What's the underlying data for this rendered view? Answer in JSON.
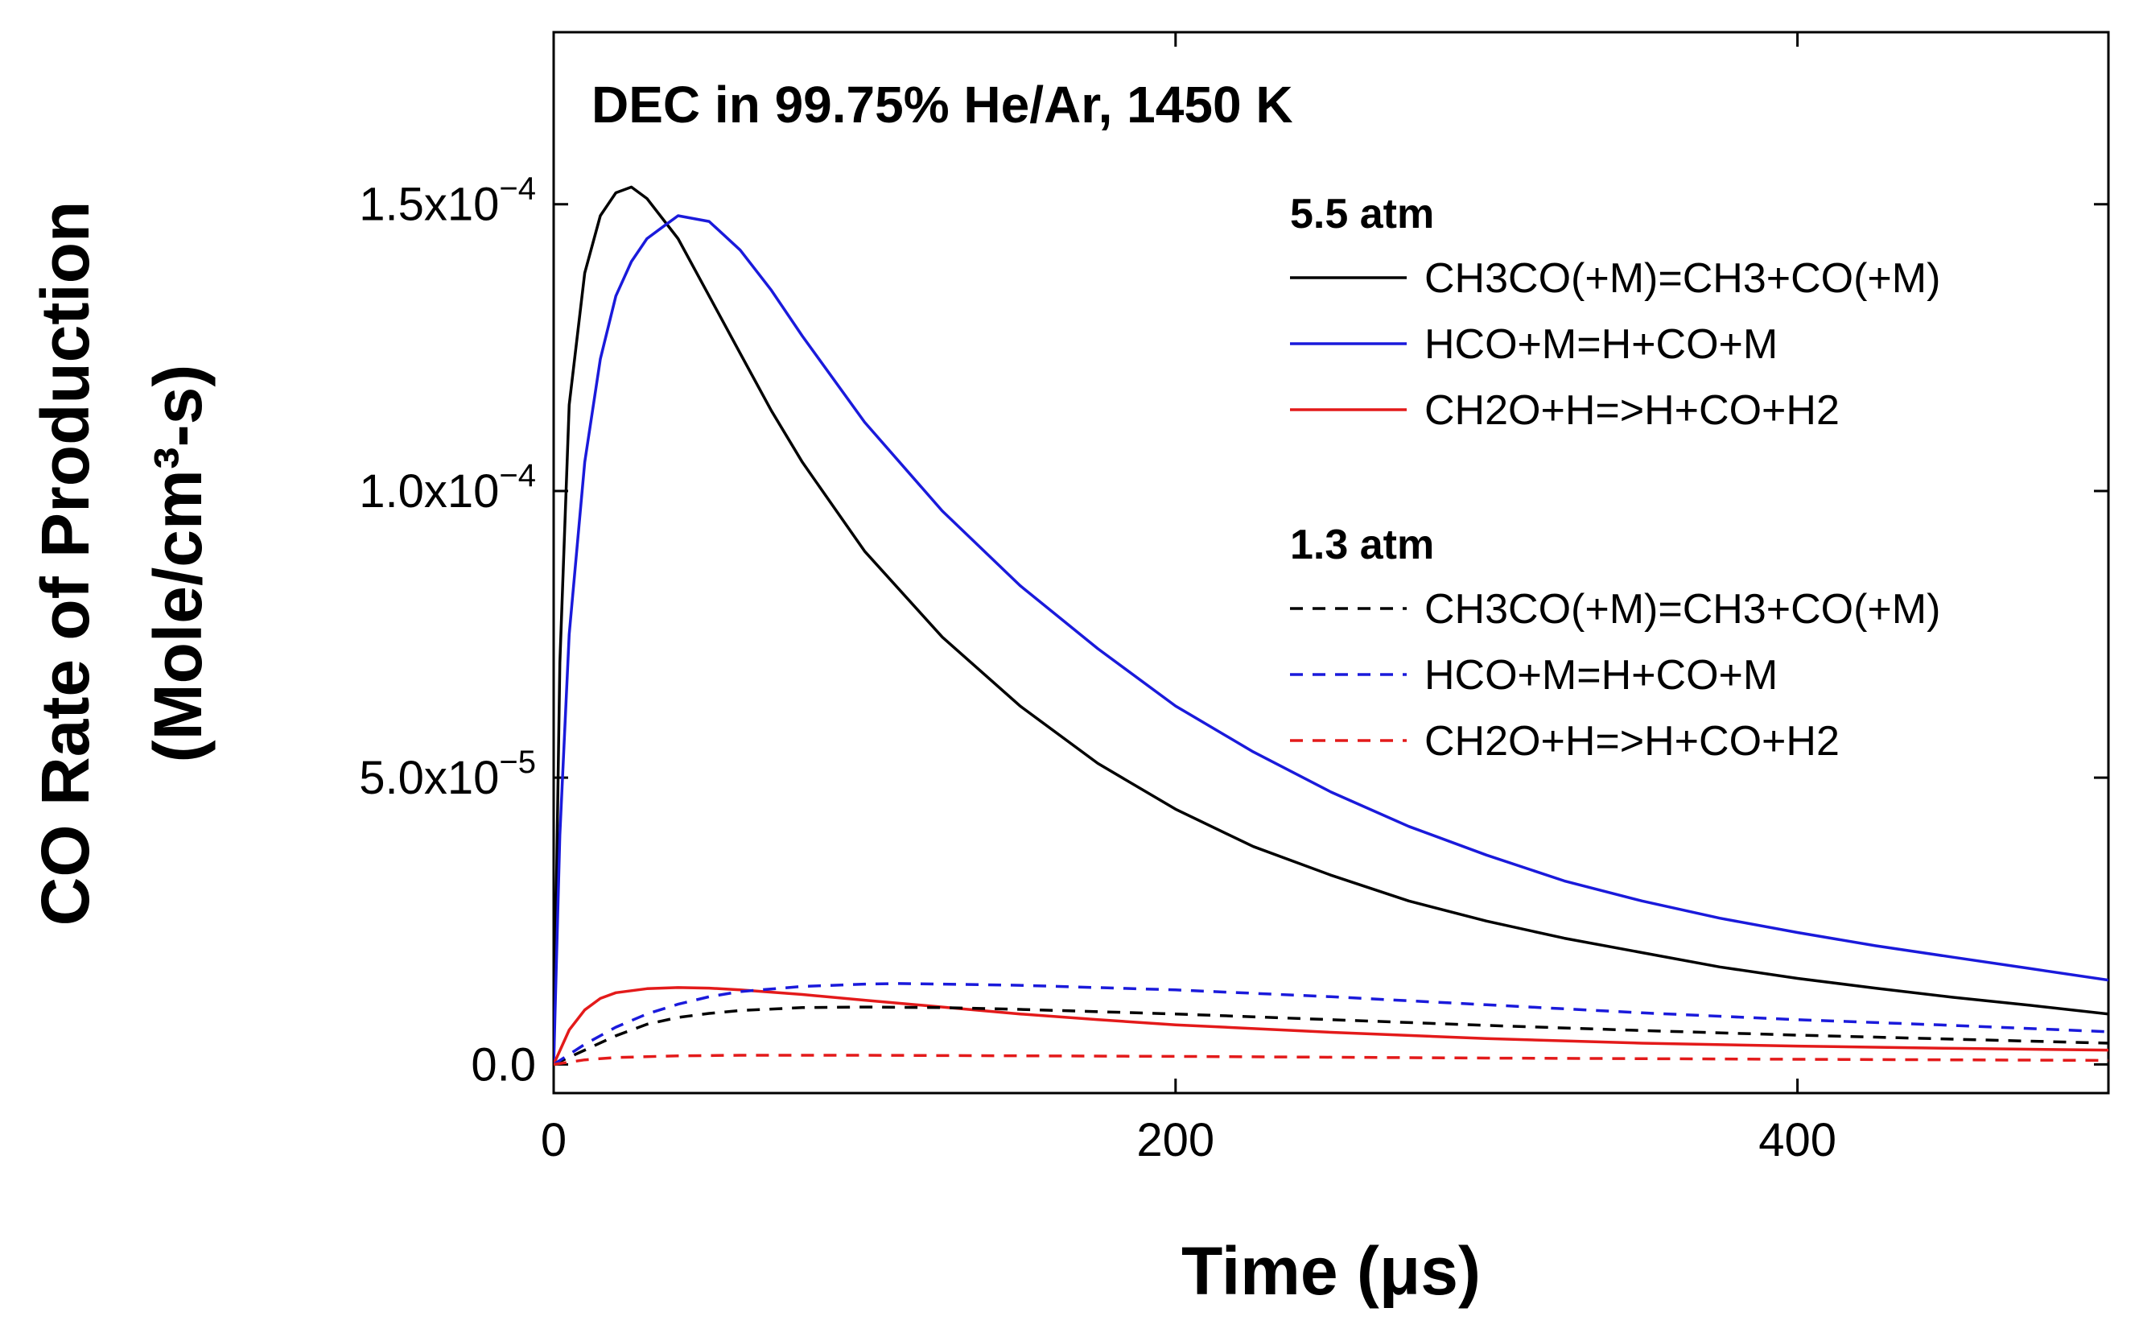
{
  "chart_data": {
    "type": "line",
    "title": "DEC in 99.75% He/Ar, 1450 K",
    "xlabel": "Time (μs)",
    "ylabel_line1": "CO Rate of Production",
    "ylabel_line2": "(Mole/cm³-s)",
    "xlim": [
      0,
      500
    ],
    "ylim": [
      -5e-06,
      0.00018
    ],
    "x_ticks": [
      0,
      200,
      400
    ],
    "x_tick_labels": [
      "0",
      "200",
      "400"
    ],
    "y_ticks": [
      0,
      5e-05,
      0.0001,
      0.00015
    ],
    "y_tick_labels": [
      {
        "mantissa": "0.0",
        "exponent": ""
      },
      {
        "mantissa": "5.0x10",
        "exponent": "−5"
      },
      {
        "mantissa": "1.0x10",
        "exponent": "−4"
      },
      {
        "mantissa": "1.5x10",
        "exponent": "−4"
      }
    ],
    "legend_groups": [
      {
        "header": "5.5 atm",
        "style": "solid"
      },
      {
        "header": "1.3 atm",
        "style": "dashed"
      }
    ],
    "legend_position": "top-right",
    "series": [
      {
        "name": "CH3CO(+M)=CH3+CO(+M)",
        "group": "5.5 atm",
        "color": "#000000",
        "dash": "solid",
        "points": [
          [
            0,
            0
          ],
          [
            2,
            7e-05
          ],
          [
            5,
            0.000115
          ],
          [
            10,
            0.000138
          ],
          [
            15,
            0.000148
          ],
          [
            20,
            0.000152
          ],
          [
            25,
            0.000153
          ],
          [
            30,
            0.000151
          ],
          [
            40,
            0.000144
          ],
          [
            50,
            0.000134
          ],
          [
            60,
            0.000124
          ],
          [
            70,
            0.000114
          ],
          [
            80,
            0.000105
          ],
          [
            100,
            8.95e-05
          ],
          [
            125,
            7.45e-05
          ],
          [
            150,
            6.25e-05
          ],
          [
            175,
            5.25e-05
          ],
          [
            200,
            4.45e-05
          ],
          [
            225,
            3.8e-05
          ],
          [
            250,
            3.3e-05
          ],
          [
            275,
            2.85e-05
          ],
          [
            300,
            2.5e-05
          ],
          [
            325,
            2.2e-05
          ],
          [
            350,
            1.95e-05
          ],
          [
            375,
            1.7e-05
          ],
          [
            400,
            1.5e-05
          ],
          [
            425,
            1.33e-05
          ],
          [
            450,
            1.17e-05
          ],
          [
            475,
            1.03e-05
          ],
          [
            500,
            8.8e-06
          ]
        ]
      },
      {
        "name": "HCO+M=H+CO+M",
        "group": "5.5 atm",
        "color": "#1a1adb",
        "dash": "solid",
        "points": [
          [
            0,
            0
          ],
          [
            2,
            4e-05
          ],
          [
            5,
            7.5e-05
          ],
          [
            10,
            0.000105
          ],
          [
            15,
            0.000123
          ],
          [
            20,
            0.000134
          ],
          [
            25,
            0.00014
          ],
          [
            30,
            0.000144
          ],
          [
            35,
            0.000146
          ],
          [
            40,
            0.000148
          ],
          [
            50,
            0.000147
          ],
          [
            60,
            0.000142
          ],
          [
            70,
            0.000135
          ],
          [
            80,
            0.000127
          ],
          [
            100,
            0.000112
          ],
          [
            125,
            9.65e-05
          ],
          [
            150,
            8.35e-05
          ],
          [
            175,
            7.25e-05
          ],
          [
            200,
            6.25e-05
          ],
          [
            225,
            5.45e-05
          ],
          [
            250,
            4.75e-05
          ],
          [
            275,
            4.15e-05
          ],
          [
            300,
            3.65e-05
          ],
          [
            325,
            3.2e-05
          ],
          [
            350,
            2.85e-05
          ],
          [
            375,
            2.55e-05
          ],
          [
            400,
            2.3e-05
          ],
          [
            425,
            2.07e-05
          ],
          [
            450,
            1.87e-05
          ],
          [
            475,
            1.67e-05
          ],
          [
            500,
            1.47e-05
          ]
        ]
      },
      {
        "name": "CH2O+H=>H+CO+H2",
        "group": "5.5 atm",
        "color": "#e31a1a",
        "dash": "solid",
        "points": [
          [
            0,
            0
          ],
          [
            5,
            6e-06
          ],
          [
            10,
            9.5e-06
          ],
          [
            15,
            1.15e-05
          ],
          [
            20,
            1.25e-05
          ],
          [
            30,
            1.32e-05
          ],
          [
            40,
            1.34e-05
          ],
          [
            50,
            1.33e-05
          ],
          [
            60,
            1.3e-05
          ],
          [
            80,
            1.22e-05
          ],
          [
            100,
            1.12e-05
          ],
          [
            125,
            1e-05
          ],
          [
            150,
            8.8e-06
          ],
          [
            175,
            7.8e-06
          ],
          [
            200,
            6.9e-06
          ],
          [
            250,
            5.6e-06
          ],
          [
            300,
            4.5e-06
          ],
          [
            350,
            3.7e-06
          ],
          [
            400,
            3.2e-06
          ],
          [
            450,
            2.8e-06
          ],
          [
            500,
            2.5e-06
          ]
        ]
      },
      {
        "name": "CH3CO(+M)=CH3+CO(+M)",
        "group": "1.3 atm",
        "color": "#000000",
        "dash": "dashed",
        "points": [
          [
            0,
            0
          ],
          [
            10,
            2.5e-06
          ],
          [
            20,
            5e-06
          ],
          [
            30,
            7e-06
          ],
          [
            40,
            8.2e-06
          ],
          [
            50,
            8.9e-06
          ],
          [
            60,
            9.4e-06
          ],
          [
            80,
            9.9e-06
          ],
          [
            100,
            1e-05
          ],
          [
            125,
            9.9e-06
          ],
          [
            150,
            9.6e-06
          ],
          [
            200,
            8.8e-06
          ],
          [
            250,
            7.8e-06
          ],
          [
            300,
            6.8e-06
          ],
          [
            350,
            5.9e-06
          ],
          [
            400,
            5.1e-06
          ],
          [
            450,
            4.4e-06
          ],
          [
            500,
            3.7e-06
          ]
        ]
      },
      {
        "name": "HCO+M=H+CO+M",
        "group": "1.3 atm",
        "color": "#1a1adb",
        "dash": "dashed",
        "points": [
          [
            0,
            0
          ],
          [
            10,
            3.5e-06
          ],
          [
            20,
            6.5e-06
          ],
          [
            30,
            8.8e-06
          ],
          [
            40,
            1.05e-05
          ],
          [
            50,
            1.18e-05
          ],
          [
            60,
            1.27e-05
          ],
          [
            80,
            1.36e-05
          ],
          [
            100,
            1.4e-05
          ],
          [
            110,
            1.41e-05
          ],
          [
            125,
            1.4e-05
          ],
          [
            150,
            1.38e-05
          ],
          [
            200,
            1.3e-05
          ],
          [
            250,
            1.18e-05
          ],
          [
            300,
            1.04e-05
          ],
          [
            350,
            9e-06
          ],
          [
            400,
            7.8e-06
          ],
          [
            450,
            6.8e-06
          ],
          [
            500,
            5.7e-06
          ]
        ]
      },
      {
        "name": "CH2O+H=>H+CO+H2",
        "group": "1.3 atm",
        "color": "#e31a1a",
        "dash": "dashed",
        "points": [
          [
            0,
            0
          ],
          [
            10,
            8e-07
          ],
          [
            20,
            1.2e-06
          ],
          [
            40,
            1.5e-06
          ],
          [
            60,
            1.6e-06
          ],
          [
            100,
            1.6e-06
          ],
          [
            150,
            1.5e-06
          ],
          [
            200,
            1.4e-06
          ],
          [
            300,
            1.1e-06
          ],
          [
            400,
            9e-07
          ],
          [
            500,
            7e-07
          ]
        ]
      }
    ]
  }
}
